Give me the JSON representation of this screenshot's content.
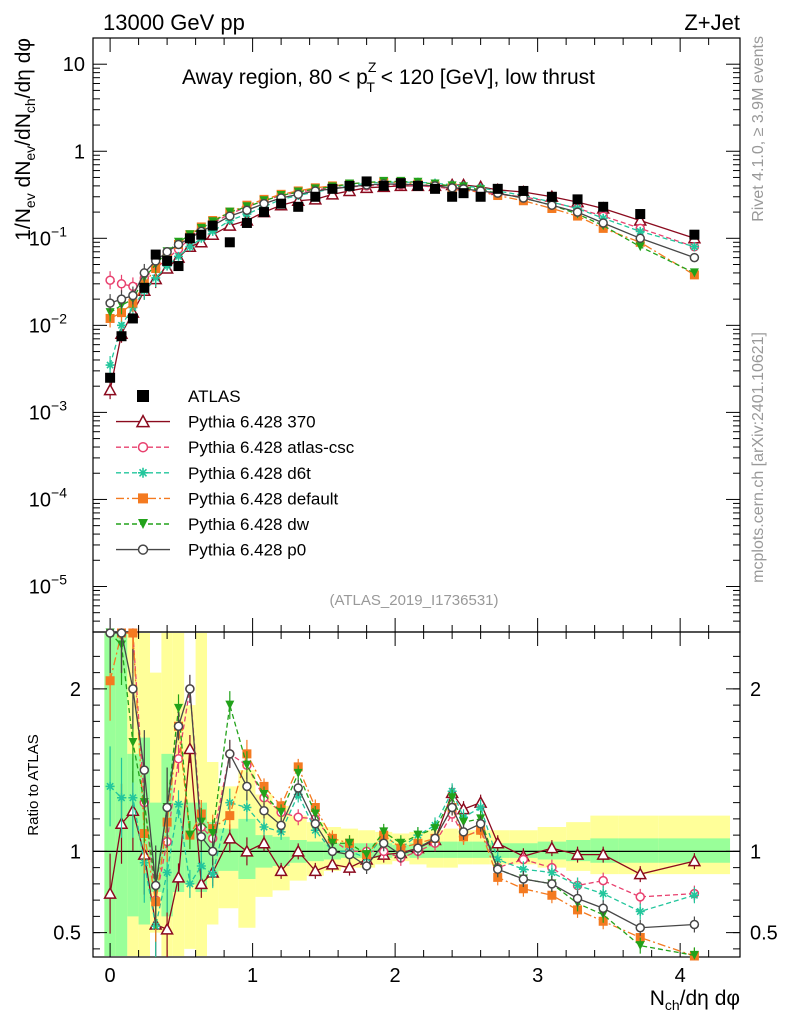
{
  "header": {
    "left_title": "13000 GeV pp",
    "right_title": "Z+Jet",
    "side_label_top": "Rivet 4.1.0, ≥ 3.9M events",
    "side_label_bottom": "mcplots.cern.ch [arXiv:2401.10621]",
    "analysis_id": "(ATLAS_2019_I1736531)"
  },
  "colors": {
    "atlas": "#000000",
    "p370": "#8b0a1e",
    "atlas_csc": "#e8406e",
    "d6t": "#22c69c",
    "default": "#f47a20",
    "dw": "#22a21a",
    "p0": "#474747",
    "band_yellow": "#ffff99",
    "band_green": "#99ff99"
  },
  "chart_data": [
    {
      "type": "scatter",
      "title": "Away region, 80 < p_T^Z < 120 [GeV], low thrust",
      "title_parts": {
        "pre": "Away region, 80 < p",
        "sup": "Z",
        "sub": "T",
        "post": " < 120 [GeV], low thrust"
      },
      "ylabel": "1/N_ev dN_ev/dN_ch/dη dφ",
      "xlim": [
        -0.12,
        4.42
      ],
      "ylim": [
        3e-06,
        20
      ],
      "yscale": "log",
      "y_ticks": [
        {
          "v": 10,
          "label": "10"
        },
        {
          "v": 1,
          "label": "1"
        },
        {
          "v": 0.1,
          "label": "10",
          "exp": "−1"
        },
        {
          "v": 0.01,
          "label": "10",
          "exp": "−2"
        },
        {
          "v": 0.001,
          "label": "10",
          "exp": "−3"
        },
        {
          "v": 0.0001,
          "label": "10",
          "exp": "−4"
        },
        {
          "v": 1e-05,
          "label": "10",
          "exp": "−5"
        }
      ],
      "x": [
        0.0,
        0.08,
        0.16,
        0.24,
        0.32,
        0.4,
        0.48,
        0.56,
        0.64,
        0.72,
        0.84,
        0.96,
        1.08,
        1.2,
        1.32,
        1.44,
        1.56,
        1.68,
        1.8,
        1.92,
        2.04,
        2.16,
        2.28,
        2.4,
        2.48,
        2.6,
        2.72,
        2.9,
        3.1,
        3.28,
        3.46,
        3.72,
        4.1
      ],
      "series": [
        {
          "name": "ATLAS",
          "key": "atlas",
          "marker": "square",
          "values": [
            0.0025,
            0.0075,
            0.012,
            0.027,
            0.065,
            0.055,
            0.048,
            0.1,
            0.11,
            0.14,
            0.09,
            0.15,
            0.2,
            0.25,
            0.23,
            0.3,
            0.37,
            0.4,
            0.45,
            0.4,
            0.43,
            0.4,
            0.37,
            0.3,
            0.33,
            0.3,
            0.37,
            0.35,
            0.3,
            0.28,
            0.23,
            0.19,
            0.11
          ]
        },
        {
          "name": "Pythia 6.428 370",
          "key": "p370",
          "marker": "triangle-open",
          "line": "solid",
          "values": [
            0.0018,
            0.008,
            0.014,
            0.025,
            0.034,
            0.045,
            0.06,
            0.08,
            0.09,
            0.11,
            0.14,
            0.16,
            0.2,
            0.24,
            0.27,
            0.28,
            0.32,
            0.35,
            0.38,
            0.39,
            0.4,
            0.4,
            0.4,
            0.41,
            0.41,
            0.39,
            0.36,
            0.34,
            0.3,
            0.26,
            0.22,
            0.16,
            0.1
          ]
        },
        {
          "name": "Pythia 6.428 atlas-csc",
          "key": "atlas_csc",
          "marker": "circle-open",
          "line": "dashed",
          "values": [
            0.033,
            0.03,
            0.028,
            0.035,
            0.045,
            0.058,
            0.075,
            0.1,
            0.125,
            0.15,
            0.19,
            0.23,
            0.27,
            0.31,
            0.34,
            0.36,
            0.38,
            0.39,
            0.4,
            0.41,
            0.41,
            0.4,
            0.39,
            0.37,
            0.36,
            0.34,
            0.32,
            0.3,
            0.26,
            0.22,
            0.18,
            0.13,
            0.08
          ]
        },
        {
          "name": "Pythia 6.428 d6t",
          "key": "d6t",
          "marker": "star",
          "line": "dashed",
          "values": [
            0.0035,
            0.01,
            0.016,
            0.025,
            0.035,
            0.048,
            0.062,
            0.08,
            0.1,
            0.12,
            0.16,
            0.19,
            0.23,
            0.28,
            0.31,
            0.34,
            0.37,
            0.4,
            0.43,
            0.44,
            0.44,
            0.44,
            0.43,
            0.41,
            0.4,
            0.38,
            0.35,
            0.31,
            0.26,
            0.22,
            0.17,
            0.12,
            0.08
          ]
        },
        {
          "name": "Pythia 6.428 default",
          "key": "default",
          "marker": "square",
          "line": "dashdot",
          "values": [
            0.012,
            0.014,
            0.018,
            0.03,
            0.045,
            0.065,
            0.085,
            0.11,
            0.135,
            0.16,
            0.2,
            0.24,
            0.28,
            0.32,
            0.35,
            0.38,
            0.4,
            0.42,
            0.44,
            0.44,
            0.44,
            0.42,
            0.4,
            0.38,
            0.36,
            0.34,
            0.31,
            0.27,
            0.22,
            0.18,
            0.13,
            0.09,
            0.038
          ]
        },
        {
          "name": "Pythia 6.428 dw",
          "key": "dw",
          "marker": "triangle-down",
          "line": "dashed",
          "values": [
            0.014,
            0.017,
            0.02,
            0.035,
            0.05,
            0.07,
            0.09,
            0.11,
            0.13,
            0.155,
            0.2,
            0.23,
            0.27,
            0.31,
            0.34,
            0.37,
            0.39,
            0.42,
            0.44,
            0.45,
            0.45,
            0.44,
            0.42,
            0.4,
            0.39,
            0.36,
            0.33,
            0.29,
            0.24,
            0.19,
            0.14,
            0.08,
            0.04
          ]
        },
        {
          "name": "Pythia 6.428 p0",
          "key": "p0",
          "marker": "circle-open",
          "line": "solid",
          "values": [
            0.018,
            0.02,
            0.022,
            0.04,
            0.055,
            0.07,
            0.085,
            0.1,
            0.12,
            0.14,
            0.18,
            0.21,
            0.25,
            0.29,
            0.32,
            0.35,
            0.37,
            0.39,
            0.41,
            0.42,
            0.42,
            0.41,
            0.4,
            0.38,
            0.37,
            0.35,
            0.33,
            0.29,
            0.24,
            0.2,
            0.15,
            0.1,
            0.06
          ]
        }
      ]
    },
    {
      "type": "scatter",
      "title": "ratio",
      "xlabel": "N_ch/dη dφ",
      "ylabel": "Ratio to ATLAS",
      "xlim": [
        -0.12,
        4.42
      ],
      "ylim": [
        0.35,
        2.35
      ],
      "x_ticks": [
        {
          "v": 0,
          "label": "0"
        },
        {
          "v": 1,
          "label": "1"
        },
        {
          "v": 2,
          "label": "2"
        },
        {
          "v": 3,
          "label": "3"
        },
        {
          "v": 4,
          "label": "4"
        }
      ],
      "y_ticks": [
        {
          "v": 0.5,
          "label": "0.5"
        },
        {
          "v": 1,
          "label": "1"
        },
        {
          "v": 2,
          "label": "2"
        }
      ],
      "bands": {
        "edges": [
          -0.04,
          0.04,
          0.12,
          0.2,
          0.28,
          0.36,
          0.44,
          0.52,
          0.6,
          0.68,
          0.76,
          0.9,
          1.02,
          1.14,
          1.26,
          1.38,
          1.5,
          1.62,
          1.74,
          1.86,
          1.98,
          2.1,
          2.22,
          2.34,
          2.44,
          2.54,
          2.66,
          2.8,
          3.0,
          3.2,
          3.37,
          3.57,
          3.85,
          4.35
        ],
        "yellow_lo": [
          0.35,
          0.35,
          0.35,
          0.35,
          0.5,
          0.35,
          0.35,
          0.4,
          0.35,
          0.55,
          0.65,
          0.53,
          0.72,
          0.76,
          0.82,
          0.85,
          0.88,
          0.9,
          0.9,
          0.92,
          0.94,
          0.92,
          0.9,
          0.9,
          0.92,
          0.92,
          0.92,
          0.92,
          0.9,
          0.88,
          0.86,
          0.86,
          0.86
        ],
        "yellow_hi": [
          2.35,
          2.35,
          2.35,
          2.35,
          2.1,
          2.35,
          2.35,
          1.9,
          2.35,
          1.55,
          1.4,
          1.5,
          1.35,
          1.28,
          1.22,
          1.18,
          1.15,
          1.14,
          1.13,
          1.12,
          1.11,
          1.12,
          1.13,
          1.14,
          1.13,
          1.13,
          1.13,
          1.13,
          1.15,
          1.18,
          1.22,
          1.22,
          1.22
        ],
        "green_lo": [
          0.35,
          0.35,
          0.6,
          0.55,
          0.75,
          0.6,
          0.75,
          0.8,
          0.75,
          0.85,
          0.88,
          0.83,
          0.9,
          0.91,
          0.93,
          0.94,
          0.95,
          0.96,
          0.96,
          0.96,
          0.97,
          0.96,
          0.96,
          0.96,
          0.96,
          0.96,
          0.96,
          0.96,
          0.95,
          0.94,
          0.93,
          0.93,
          0.93
        ],
        "green_hi": [
          2.35,
          2.35,
          1.6,
          1.7,
          1.3,
          1.6,
          1.3,
          1.3,
          1.3,
          1.18,
          1.14,
          1.2,
          1.1,
          1.09,
          1.07,
          1.06,
          1.05,
          1.05,
          1.05,
          1.05,
          1.04,
          1.05,
          1.06,
          1.06,
          1.06,
          1.06,
          1.05,
          1.05,
          1.06,
          1.07,
          1.08,
          1.08,
          1.08
        ]
      },
      "series": [
        {
          "name": "Pythia 6.428 370",
          "key": "p370",
          "marker": "triangle-open",
          "line": "solid",
          "values": [
            0.74,
            1.17,
            1.25,
            0.98,
            0.55,
            0.52,
            0.84,
            1.63,
            0.8,
            0.87,
            1.08,
            1.0,
            1.05,
            0.88,
            1.0,
            0.88,
            0.92,
            0.9,
            0.95,
            0.98,
            0.99,
            1.02,
            1.07,
            1.36,
            1.26,
            1.3,
            1.05,
            0.97,
            1.02,
            0.98,
            0.98,
            0.86,
            0.94
          ]
        },
        {
          "name": "Pythia 6.428 atlas-csc",
          "key": "atlas_csc",
          "marker": "circle-open",
          "line": "dashed",
          "values": [
            2.35,
            2.35,
            2.35,
            1.3,
            0.7,
            1.06,
            1.57,
            2.0,
            1.15,
            1.08,
            1.6,
            1.53,
            1.33,
            1.24,
            1.21,
            1.2,
            1.07,
            1.0,
            1.0,
            1.0,
            0.96,
            1.0,
            1.05,
            1.23,
            1.09,
            1.13,
            0.9,
            0.95,
            0.9,
            0.79,
            0.82,
            0.72,
            0.74
          ]
        },
        {
          "name": "Pythia 6.428 d6t",
          "key": "d6t",
          "marker": "star",
          "line": "dashed",
          "values": [
            1.4,
            1.33,
            1.33,
            0.93,
            0.54,
            0.87,
            1.29,
            0.8,
            0.91,
            0.86,
            1.3,
            1.27,
            1.15,
            1.12,
            1.35,
            1.13,
            1.0,
            1.0,
            0.96,
            1.1,
            1.02,
            1.1,
            1.16,
            1.37,
            1.21,
            1.27,
            0.95,
            0.89,
            0.87,
            0.79,
            0.74,
            0.63,
            0.73
          ]
        },
        {
          "name": "Pythia 6.428 default",
          "key": "default",
          "marker": "square",
          "line": "dashdot",
          "values": [
            2.05,
            2.35,
            2.35,
            1.11,
            0.69,
            1.18,
            1.77,
            1.1,
            1.23,
            1.14,
            1.22,
            1.6,
            1.4,
            1.28,
            1.52,
            1.27,
            1.08,
            1.05,
            0.98,
            1.1,
            1.02,
            1.05,
            1.08,
            1.27,
            1.09,
            1.13,
            0.84,
            0.77,
            0.73,
            0.64,
            0.57,
            0.47,
            0.35
          ]
        },
        {
          "name": "Pythia 6.428 dw",
          "key": "dw",
          "marker": "triangle-down",
          "line": "dashed",
          "values": [
            2.35,
            2.27,
            1.67,
            1.3,
            0.77,
            1.27,
            1.88,
            1.1,
            1.18,
            1.11,
            1.9,
            1.53,
            1.35,
            1.24,
            1.48,
            1.23,
            1.05,
            1.05,
            0.98,
            1.12,
            1.05,
            1.1,
            1.14,
            1.33,
            1.18,
            1.2,
            0.89,
            0.83,
            0.8,
            0.68,
            0.61,
            0.42,
            0.36
          ]
        },
        {
          "name": "Pythia 6.428 p0",
          "key": "p0",
          "marker": "circle-open",
          "line": "solid",
          "values": [
            2.35,
            2.35,
            2.0,
            1.5,
            0.79,
            1.27,
            1.77,
            2.0,
            1.09,
            1.0,
            1.6,
            1.4,
            1.25,
            1.16,
            1.39,
            1.17,
            1.0,
            0.98,
            0.91,
            1.05,
            0.98,
            1.02,
            1.08,
            1.27,
            1.12,
            1.17,
            0.89,
            0.83,
            0.8,
            0.71,
            0.65,
            0.53,
            0.55
          ]
        }
      ]
    }
  ]
}
